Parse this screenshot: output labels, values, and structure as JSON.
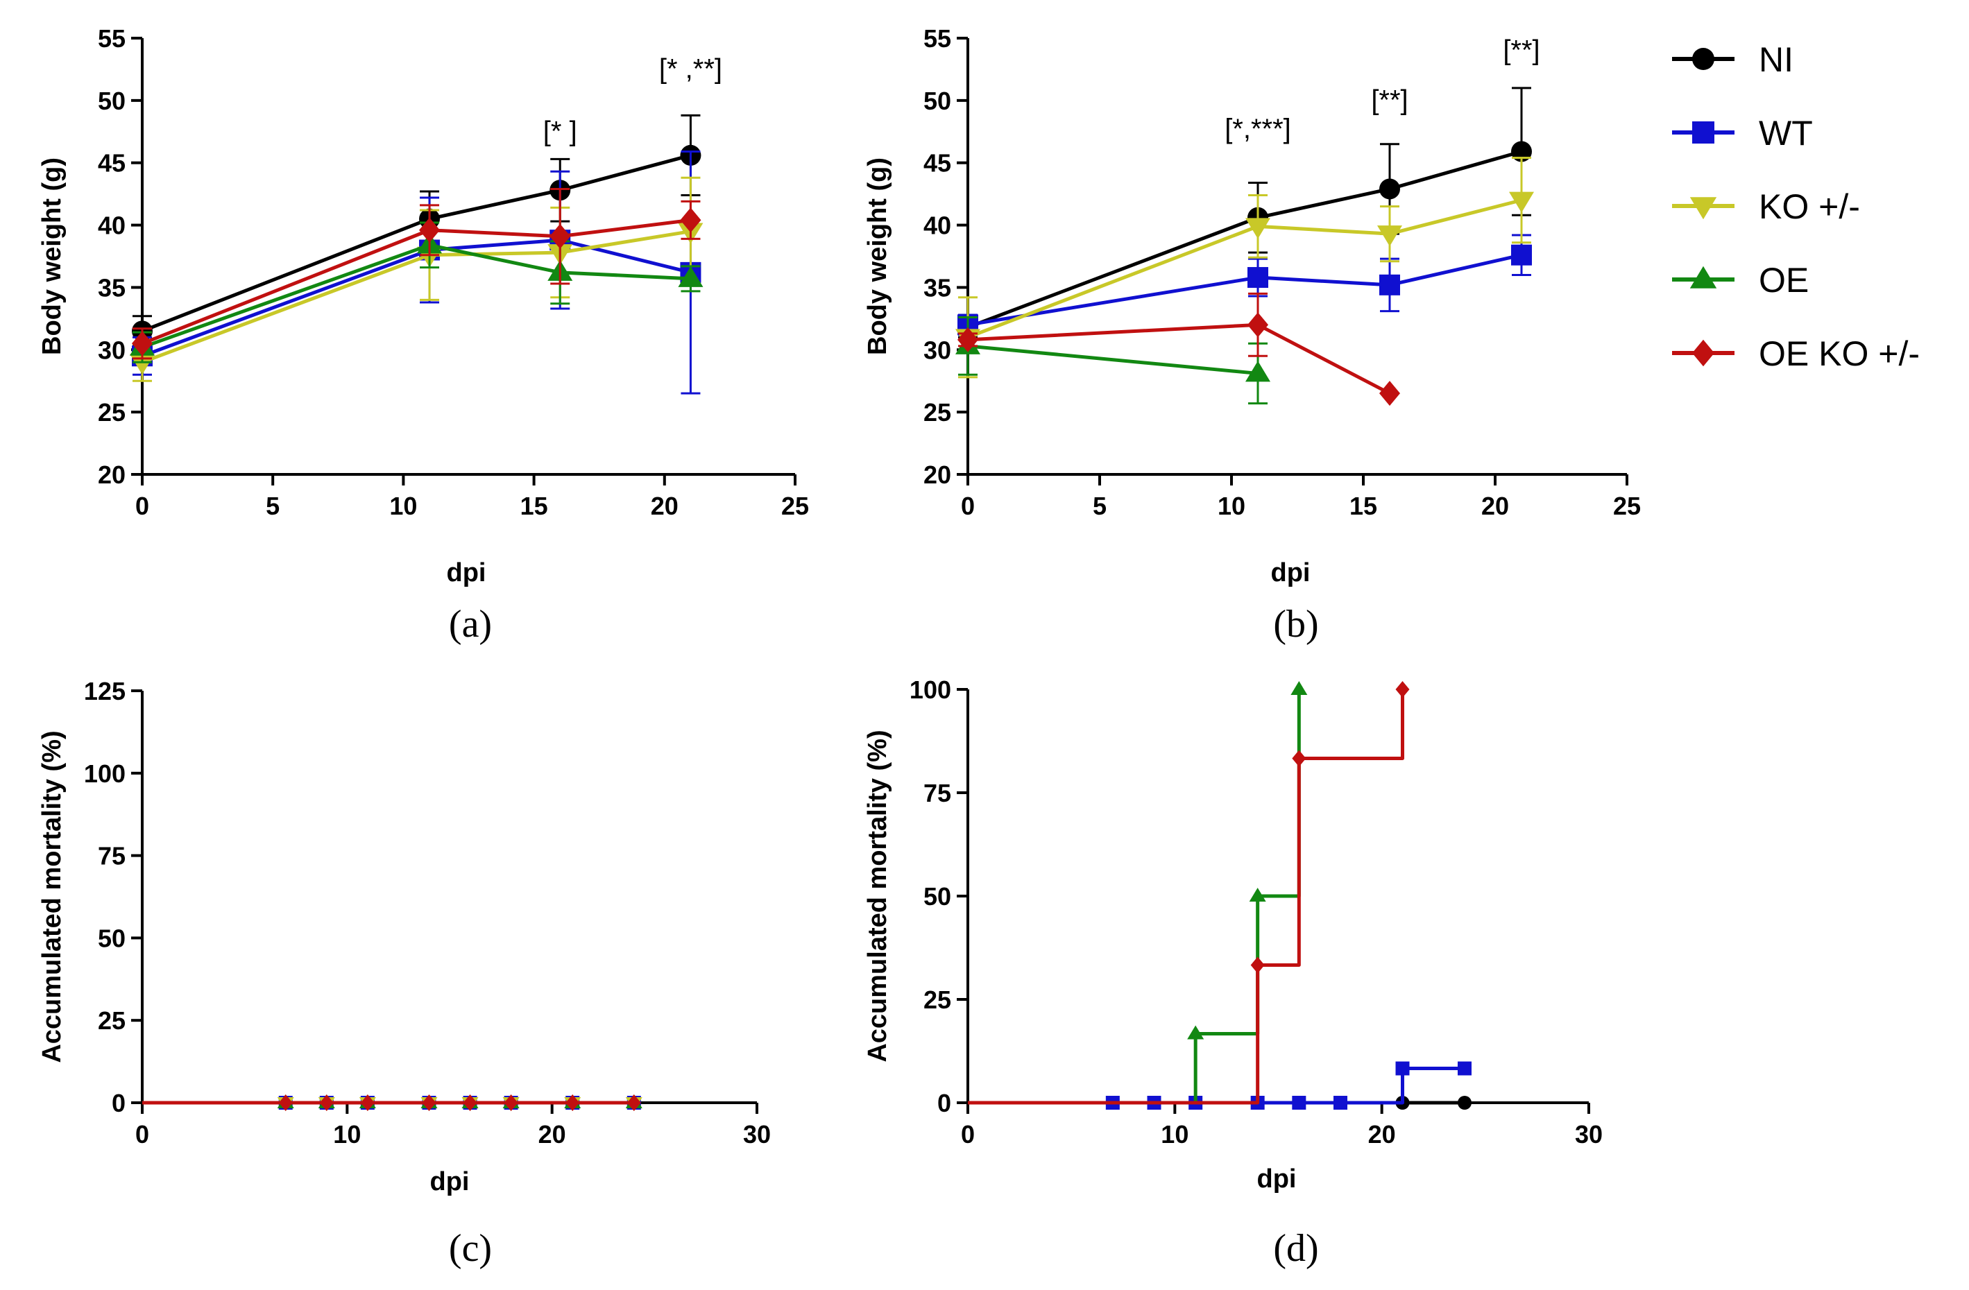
{
  "legend": [
    {
      "name": "NI",
      "color": "#000000",
      "marker": "circle"
    },
    {
      "name": "WT",
      "color": "#1010d0",
      "marker": "square"
    },
    {
      "name": "KO +/-",
      "color": "#c8c828",
      "marker": "triangle-down"
    },
    {
      "name": "OE",
      "color": "#128812",
      "marker": "triangle-up"
    },
    {
      "name": "OE KO +/-",
      "color": "#c01010",
      "marker": "diamond"
    }
  ],
  "chart_data": [
    {
      "panel": "(a)",
      "type": "line",
      "xlabel": "dpi",
      "ylabel": "Body weight (g)",
      "xlim": [
        0,
        25
      ],
      "xticks": [
        0,
        5,
        10,
        15,
        20,
        25
      ],
      "ylim": [
        20,
        55
      ],
      "yticks": [
        20,
        25,
        30,
        35,
        40,
        45,
        50,
        55
      ],
      "annotations": [
        {
          "text": "[* ]",
          "x": 16,
          "y": 46.8
        },
        {
          "text": "[* ,**]",
          "x": 21,
          "y": 51.8
        }
      ],
      "series": [
        {
          "name": "NI",
          "x": [
            0,
            11,
            16,
            21
          ],
          "y": [
            31.5,
            40.5,
            42.8,
            45.6
          ],
          "err": [
            1.2,
            2.2,
            2.5,
            3.2
          ]
        },
        {
          "name": "WT",
          "x": [
            0,
            11,
            16,
            21
          ],
          "y": [
            29.5,
            38.0,
            38.8,
            36.2
          ],
          "err": [
            1.5,
            4.2,
            5.5,
            9.7
          ]
        },
        {
          "name": "KO +/-",
          "x": [
            0,
            11,
            16,
            21
          ],
          "y": [
            29.0,
            37.6,
            37.8,
            39.5
          ],
          "err": [
            1.5,
            3.6,
            3.6,
            4.3
          ]
        },
        {
          "name": "OE",
          "x": [
            0,
            11,
            16,
            21
          ],
          "y": [
            30.2,
            38.4,
            36.2,
            35.7
          ],
          "err": [
            1.2,
            1.8,
            2.5,
            1.0
          ]
        },
        {
          "name": "OE KO +/-",
          "x": [
            0,
            11,
            16,
            21
          ],
          "y": [
            30.5,
            39.6,
            39.1,
            40.4
          ],
          "err": [
            1.2,
            2.0,
            3.8,
            1.5
          ]
        }
      ]
    },
    {
      "panel": "(b)",
      "type": "line",
      "xlabel": "dpi",
      "ylabel": "Body weight (g)",
      "xlim": [
        0,
        25
      ],
      "xticks": [
        0,
        5,
        10,
        15,
        20,
        25
      ],
      "ylim": [
        20,
        55
      ],
      "yticks": [
        20,
        25,
        30,
        35,
        40,
        45,
        50,
        55
      ],
      "annotations": [
        {
          "text": "[*,***]",
          "x": 11,
          "y": 47.0
        },
        {
          "text": "[**]",
          "x": 16,
          "y": 49.3
        },
        {
          "text": "[**]",
          "x": 21,
          "y": 53.3
        }
      ],
      "series": [
        {
          "name": "NI",
          "x": [
            0,
            11,
            16,
            21
          ],
          "y": [
            31.8,
            40.6,
            42.9,
            45.9
          ],
          "err": [
            0.8,
            2.8,
            3.6,
            5.1
          ]
        },
        {
          "name": "WT",
          "x": [
            0,
            11,
            16,
            21
          ],
          "y": [
            32.0,
            35.8,
            35.2,
            37.6
          ],
          "err": [
            0.8,
            1.5,
            2.1,
            1.6
          ]
        },
        {
          "name": "KO +/-",
          "x": [
            0,
            11,
            16,
            21
          ],
          "y": [
            31.0,
            39.9,
            39.3,
            42.0
          ],
          "err": [
            3.2,
            2.5,
            2.2,
            3.4
          ]
        },
        {
          "name": "OE",
          "x": [
            0,
            11
          ],
          "y": [
            30.3,
            28.1
          ],
          "err": [
            2.3,
            2.4
          ]
        },
        {
          "name": "OE KO +/-",
          "x": [
            0,
            11,
            16
          ],
          "y": [
            30.8,
            32.0,
            26.5
          ],
          "err": [
            0.5,
            2.5,
            0
          ]
        }
      ]
    },
    {
      "panel": "(c)",
      "type": "line",
      "xlabel": "dpi",
      "ylabel": "Accumulated mortality (%)",
      "xlim": [
        0,
        30
      ],
      "xticks": [
        0,
        10,
        20,
        30
      ],
      "ylim": [
        0,
        125
      ],
      "yticks": [
        0,
        25,
        50,
        75,
        100,
        125
      ],
      "series": [
        {
          "name": "NI",
          "x": [
            7,
            9,
            11,
            14,
            16,
            18,
            21,
            24
          ],
          "y": [
            0,
            0,
            0,
            0,
            0,
            0,
            0,
            0
          ]
        },
        {
          "name": "WT",
          "x": [
            7,
            9,
            11,
            14,
            16,
            18,
            21,
            24
          ],
          "y": [
            0,
            0,
            0,
            0,
            0,
            0,
            0,
            0
          ]
        },
        {
          "name": "KO +/-",
          "x": [
            7,
            9,
            11,
            14,
            16,
            18,
            21,
            24
          ],
          "y": [
            0,
            0,
            0,
            0,
            0,
            0,
            0,
            0
          ]
        },
        {
          "name": "OE",
          "x": [
            7,
            9,
            11,
            14,
            16,
            18,
            21,
            24
          ],
          "y": [
            0,
            0,
            0,
            0,
            0,
            0,
            0,
            0
          ]
        },
        {
          "name": "OE KO +/-",
          "x": [
            7,
            9,
            11,
            14,
            16,
            18,
            21,
            24
          ],
          "y": [
            0,
            0,
            0,
            0,
            0,
            0,
            0,
            0
          ]
        }
      ]
    },
    {
      "panel": "(d)",
      "type": "line",
      "xlabel": "dpi",
      "ylabel": "Accumulated mortality (%)",
      "xlim": [
        0,
        30
      ],
      "xticks": [
        0,
        10,
        20,
        30
      ],
      "ylim": [
        0,
        100
      ],
      "yticks": [
        0,
        25,
        50,
        75,
        100
      ],
      "series": [
        {
          "name": "NI",
          "x": [
            7,
            9,
            11,
            14,
            16,
            18,
            21,
            24
          ],
          "y": [
            0,
            0,
            0,
            0,
            0,
            0,
            0,
            0
          ]
        },
        {
          "name": "WT",
          "x": [
            7,
            9,
            11,
            14,
            16,
            18,
            21,
            24
          ],
          "y": [
            0,
            0,
            0,
            0,
            0,
            0,
            8.3,
            8.3
          ]
        },
        {
          "name": "OE",
          "x": [
            11,
            14,
            16
          ],
          "y": [
            16.7,
            50,
            100
          ]
        },
        {
          "name": "OE KO +/-",
          "x": [
            14,
            16,
            21
          ],
          "y": [
            33.3,
            83.3,
            100
          ]
        }
      ]
    }
  ]
}
